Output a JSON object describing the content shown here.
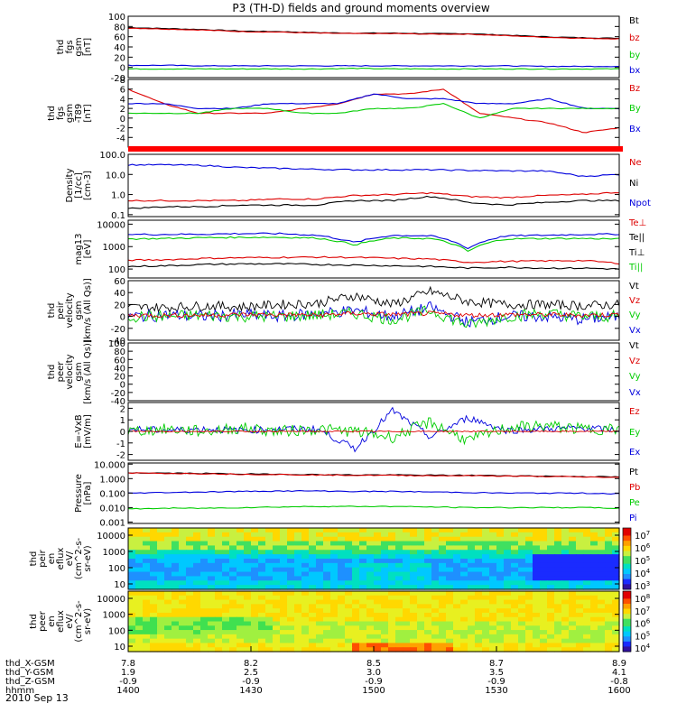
{
  "title": "P3 (TH-D) fields and ground moments overview",
  "date": "2010 Sep 13",
  "chart_data": [
    {
      "type": "line",
      "ylabel_lines": [
        "thd",
        "fgs",
        "gsm",
        "[nT]"
      ],
      "yticks": [
        "100",
        "80",
        "60",
        "40",
        "20",
        "0",
        "-20"
      ],
      "ylim": [
        -20,
        100
      ],
      "legend": [
        {
          "label": "Bt",
          "color": "#000000"
        },
        {
          "label": "bz",
          "color": "#dd0000"
        },
        {
          "label": "by",
          "color": "#00cc00"
        },
        {
          "label": "bx",
          "color": "#0000dd"
        }
      ],
      "series": [
        {
          "color": "#000000",
          "values": [
            78,
            76,
            74,
            71,
            70,
            68,
            67,
            67,
            66,
            66,
            63,
            60,
            58,
            57
          ]
        },
        {
          "color": "#dd0000",
          "values": [
            77,
            75,
            73,
            70,
            69,
            67,
            66,
            66,
            65,
            65,
            62,
            59,
            57,
            56
          ]
        },
        {
          "color": "#0000dd",
          "values": [
            4,
            4,
            3,
            3,
            3,
            3,
            3,
            3,
            3,
            3,
            3,
            2,
            2,
            2
          ]
        },
        {
          "color": "#00cc00",
          "values": [
            -3,
            -3,
            -3,
            -3,
            -3,
            -3,
            -2,
            -3,
            -3,
            -3,
            -3,
            -3,
            -3,
            -3
          ]
        }
      ]
    },
    {
      "type": "line",
      "ylabel_lines": [
        "thd",
        "fgs",
        "gsm",
        "-T89",
        "[nT]"
      ],
      "yticks": [
        "8",
        "6",
        "4",
        "2",
        "0",
        "-2",
        "-4"
      ],
      "ylim": [
        -6,
        8
      ],
      "legend": [
        {
          "label": "Bz",
          "color": "#dd0000"
        },
        {
          "label": "By",
          "color": "#00cc00"
        },
        {
          "label": "Bx",
          "color": "#0000dd"
        }
      ],
      "series": [
        {
          "color": "#dd0000",
          "values": [
            6,
            3,
            1,
            1,
            1,
            2,
            3,
            5,
            5,
            6,
            1,
            0,
            -1,
            -3,
            -2
          ]
        },
        {
          "color": "#0000dd",
          "values": [
            3,
            3,
            2,
            2,
            3,
            3,
            3,
            5,
            4,
            4,
            3,
            3,
            4,
            2,
            2
          ]
        },
        {
          "color": "#00cc00",
          "values": [
            1,
            1,
            1,
            2,
            2,
            1,
            1,
            2,
            2,
            3,
            0,
            2,
            2,
            2,
            2
          ]
        }
      ]
    },
    {
      "type": "line",
      "ylabel_lines": [
        "Density",
        "[1/cc]",
        "[cm-3]"
      ],
      "yticks": [
        "100.0",
        "10.0",
        "1.0",
        "0.1"
      ],
      "scale": "log",
      "ylim": [
        0.08,
        100
      ],
      "legend": [
        {
          "label": "Ne",
          "color": "#dd0000"
        },
        {
          "label": "Ni",
          "color": "#000000"
        },
        {
          "label": "Npot",
          "color": "#0000dd"
        }
      ],
      "series": [
        {
          "color": "#0000dd",
          "values": [
            30,
            30,
            28,
            22,
            20,
            18,
            17,
            17,
            17,
            16,
            15,
            15,
            8,
            10
          ]
        },
        {
          "color": "#dd0000",
          "values": [
            0.5,
            0.5,
            0.5,
            0.5,
            0.6,
            0.6,
            0.9,
            1.0,
            1.2,
            0.8,
            0.7,
            0.9,
            1.0,
            1.3
          ]
        },
        {
          "color": "#000000",
          "values": [
            0.2,
            0.25,
            0.25,
            0.3,
            0.3,
            0.3,
            0.5,
            0.5,
            0.8,
            0.4,
            0.3,
            0.4,
            0.5,
            0.5
          ]
        }
      ]
    },
    {
      "type": "line",
      "ylabel_lines": [
        "mag13",
        "[eV]"
      ],
      "yticks": [
        "10000",
        "1000",
        "100"
      ],
      "scale": "log",
      "ylim": [
        40,
        15000
      ],
      "legend": [
        {
          "label": "Te⊥",
          "color": "#dd0000"
        },
        {
          "label": "Te||",
          "color": "#000000"
        },
        {
          "label": "Ti⊥",
          "color": "#000000"
        },
        {
          "label": "Ti||",
          "color": "#00cc00"
        }
      ],
      "series": [
        {
          "color": "#0000dd",
          "values": [
            3500,
            3500,
            3600,
            3800,
            3800,
            3200,
            1500,
            3200,
            3000,
            800,
            3000,
            3200,
            3500,
            3600
          ]
        },
        {
          "color": "#00cc00",
          "values": [
            2200,
            2300,
            2500,
            2600,
            2600,
            2400,
            1200,
            2400,
            2300,
            600,
            2200,
            2300,
            2300,
            2200
          ]
        },
        {
          "color": "#dd0000",
          "values": [
            250,
            260,
            300,
            320,
            330,
            340,
            330,
            300,
            280,
            200,
            220,
            230,
            240,
            180
          ]
        },
        {
          "color": "#000000",
          "values": [
            130,
            140,
            160,
            170,
            170,
            160,
            150,
            140,
            130,
            110,
            120,
            110,
            110,
            100
          ]
        }
      ]
    },
    {
      "type": "line",
      "ylabel_lines": [
        "thd",
        "peir",
        "velocity",
        "gsm",
        "[km/s (All Qs)]"
      ],
      "yticks": [
        "60",
        "40",
        "20",
        "0",
        "-20",
        "-40"
      ],
      "ylim": [
        -40,
        60
      ],
      "noisy": true,
      "legend": [
        {
          "label": "Vt",
          "color": "#000000"
        },
        {
          "label": "Vz",
          "color": "#dd0000"
        },
        {
          "label": "Vy",
          "color": "#00cc00"
        },
        {
          "label": "Vx",
          "color": "#0000dd"
        }
      ],
      "series": [
        {
          "color": "#000000",
          "values": [
            15,
            15,
            18,
            16,
            20,
            22,
            35,
            20,
            42,
            25,
            20,
            20,
            18,
            20
          ],
          "noise": 8
        },
        {
          "color": "#0000dd",
          "values": [
            0,
            2,
            0,
            3,
            0,
            5,
            10,
            0,
            15,
            -10,
            0,
            0,
            -5,
            0
          ],
          "noise": 10
        },
        {
          "color": "#00cc00",
          "values": [
            0,
            0,
            2,
            0,
            0,
            2,
            5,
            -5,
            10,
            -15,
            0,
            5,
            0,
            0
          ],
          "noise": 10
        },
        {
          "color": "#dd0000",
          "values": [
            2,
            2,
            2,
            3,
            3,
            2,
            5,
            3,
            5,
            2,
            3,
            3,
            2,
            3
          ],
          "noise": 4
        }
      ]
    },
    {
      "type": "line",
      "ylabel_lines": [
        "thd",
        "peer",
        "velocity",
        "gsm",
        "[km/s (All Qs)]"
      ],
      "yticks": [
        "100",
        "80",
        "60",
        "40",
        "20",
        "0",
        "-20",
        "-40"
      ],
      "ylim": [
        -40,
        100
      ],
      "legend": [
        {
          "label": "Vt",
          "color": "#000000"
        },
        {
          "label": "Vz",
          "color": "#dd0000"
        },
        {
          "label": "Vy",
          "color": "#00cc00"
        },
        {
          "label": "Vx",
          "color": "#0000dd"
        }
      ],
      "series": []
    },
    {
      "type": "line",
      "ylabel_lines": [
        "E=-VxB",
        "[mV/m]"
      ],
      "yticks": [
        "2",
        "1",
        "0",
        "-1",
        "-2"
      ],
      "ylim": [
        -2.5,
        2.5
      ],
      "noisy": true,
      "legend": [
        {
          "label": "Ez",
          "color": "#dd0000"
        },
        {
          "label": "Ey",
          "color": "#00cc00"
        },
        {
          "label": "Ex",
          "color": "#0000dd"
        }
      ],
      "series": [
        {
          "color": "#0000dd",
          "values": [
            0.2,
            0.1,
            0.2,
            0.1,
            0.2,
            0.2,
            -1.5,
            1.8,
            -0.5,
            1.2,
            0.1,
            0.2,
            0.3,
            0.1
          ],
          "noise": 0.3
        },
        {
          "color": "#00cc00",
          "values": [
            0,
            0.2,
            0,
            0.3,
            0,
            0.2,
            0,
            -0.5,
            0.8,
            -0.8,
            0.3,
            0.5,
            0.2,
            0.2
          ],
          "noise": 0.5
        },
        {
          "color": "#dd0000",
          "values": [
            0,
            0,
            0,
            0,
            0,
            0,
            0,
            0,
            0,
            0,
            0,
            0,
            0,
            0
          ],
          "noise": 0.05
        }
      ]
    },
    {
      "type": "line",
      "ylabel_lines": [
        "Pressure",
        "[nPa]"
      ],
      "yticks": [
        "10.000",
        "1.000",
        "0.100",
        "0.010",
        "0.001"
      ],
      "scale": "log",
      "ylim": [
        0.0008,
        12
      ],
      "legend": [
        {
          "label": "Pt",
          "color": "#000000"
        },
        {
          "label": "Pb",
          "color": "#dd0000"
        },
        {
          "label": "Pe",
          "color": "#00cc00"
        },
        {
          "label": "Pi",
          "color": "#0000dd"
        }
      ],
      "series": [
        {
          "color": "#000000",
          "values": [
            2.5,
            2.4,
            2.3,
            2.1,
            2.0,
            1.9,
            1.8,
            1.8,
            1.7,
            1.7,
            1.6,
            1.5,
            1.4,
            1.3
          ]
        },
        {
          "color": "#dd0000",
          "values": [
            2.4,
            2.3,
            2.2,
            2.0,
            1.9,
            1.8,
            1.7,
            1.7,
            1.6,
            1.6,
            1.5,
            1.4,
            1.3,
            1.2
          ]
        },
        {
          "color": "#0000dd",
          "values": [
            0.1,
            0.11,
            0.12,
            0.13,
            0.14,
            0.14,
            0.13,
            0.13,
            0.12,
            0.11,
            0.1,
            0.1,
            0.1,
            0.09
          ]
        },
        {
          "color": "#00cc00",
          "values": [
            0.008,
            0.009,
            0.009,
            0.01,
            0.011,
            0.012,
            0.012,
            0.012,
            0.011,
            0.01,
            0.01,
            0.01,
            0.01,
            0.009
          ]
        }
      ]
    },
    {
      "type": "heatmap",
      "ylabel_lines": [
        "thd",
        "peir",
        "en",
        "eflux",
        "eV/",
        "(cm^2-s-",
        "sr-eV)"
      ],
      "yticks": [
        "10000",
        "1000",
        "100",
        "10"
      ],
      "colorbar_ticks": [
        "10^7",
        "10^6",
        "10^5",
        "10^4",
        "10^3"
      ]
    },
    {
      "type": "heatmap",
      "ylabel_lines": [
        "thd",
        "peer",
        "en",
        "eflux",
        "eV/",
        "(cm^2-s-",
        "sr-eV)"
      ],
      "yticks": [
        "10000",
        "1000",
        "100",
        "10"
      ],
      "colorbar_ticks": [
        "10^8",
        "10^7",
        "10^6",
        "10^5",
        "10^4"
      ]
    }
  ],
  "xaxis": {
    "row_labels": [
      "thd_X-GSM",
      "thd_Y-GSM",
      "thd_Z-GSM",
      "hhmm"
    ],
    "columns": [
      [
        "7.8",
        "1.9",
        "-0.9",
        "1400"
      ],
      [
        "8.2",
        "2.5",
        "-0.9",
        "1430"
      ],
      [
        "8.5",
        "3.0",
        "-0.9",
        "1500"
      ],
      [
        "8.7",
        "3.5",
        "-0.9",
        "1530"
      ],
      [
        "8.9",
        "4.1",
        "-0.8",
        "1600"
      ]
    ]
  }
}
